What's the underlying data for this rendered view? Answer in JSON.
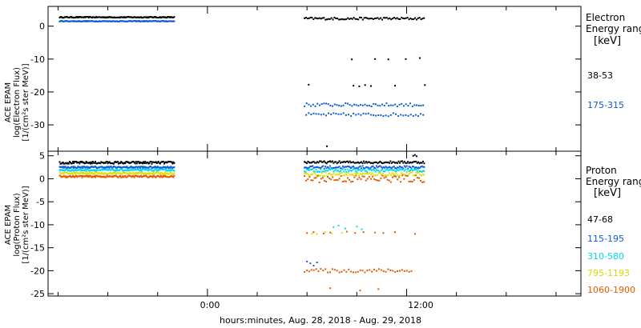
{
  "chart_data": [
    {
      "type": "scatter",
      "ylabel_lines": [
        "ACE EPAM",
        "log(Electron Flux)",
        "[1/(cm²s ster MeV)]"
      ],
      "ylim": [
        -38,
        6
      ],
      "yticks": [
        0,
        -10,
        -20,
        -30
      ],
      "legend_title": [
        "Electron",
        "Energy range",
        "[keV]"
      ],
      "series": [
        {
          "name": "38-53",
          "color": "#000000",
          "segments": [
            {
              "x0": -8.9,
              "x1": -2.0,
              "y": 2.7,
              "jitter": 0.15,
              "step": 0.05
            },
            {
              "x0": 5.85,
              "x1": 13.1,
              "y": 2.3,
              "jitter": 0.35,
              "step": 0.09
            }
          ],
          "points": [
            [
              6.1,
              -17.8
            ],
            [
              8.7,
              -10.1
            ],
            [
              10.1,
              -10.0
            ],
            [
              10.9,
              -10.1
            ],
            [
              11.95,
              -10.0
            ],
            [
              12.8,
              -9.7
            ],
            [
              8.8,
              -18.1
            ],
            [
              9.15,
              -18.3
            ],
            [
              9.5,
              -17.9
            ],
            [
              9.85,
              -18.2
            ],
            [
              11.3,
              -18.1
            ],
            [
              13.1,
              -17.9
            ],
            [
              7.2,
              -36.5
            ]
          ]
        },
        {
          "name": "175-315",
          "color": "#0b5bd8",
          "segments": [
            {
              "x0": -8.9,
              "x1": -2.0,
              "y": 1.5,
              "jitter": 0.12,
              "step": 0.05
            },
            {
              "x0": 5.85,
              "x1": 13.1,
              "y": -23.9,
              "jitter": 0.5,
              "step": 0.13
            },
            {
              "x0": 5.95,
              "x1": 13.1,
              "y": -26.9,
              "jitter": 0.5,
              "step": 0.15
            }
          ],
          "points": []
        }
      ]
    },
    {
      "type": "scatter",
      "ylabel_lines": [
        "ACE EPAM",
        "log(Proton Flux)",
        "[1/(cm²s ster MeV)]"
      ],
      "ylim": [
        -25.5,
        6
      ],
      "yticks": [
        5,
        0,
        -5,
        -10,
        -15,
        -20,
        -25
      ],
      "legend_title": [
        "Proton",
        "Energy range",
        "[keV]"
      ],
      "series": [
        {
          "name": "47-68",
          "color": "#000000",
          "segments": [
            {
              "x0": -8.9,
              "x1": -2.0,
              "y": 3.5,
              "jitter": 0.25,
              "step": 0.05
            },
            {
              "x0": 5.85,
              "x1": 13.1,
              "y": 3.6,
              "jitter": 0.25,
              "step": 0.07
            }
          ],
          "points": [
            [
              12.4,
              5.0
            ],
            [
              12.5,
              5.2
            ],
            [
              12.6,
              4.9
            ]
          ]
        },
        {
          "name": "115-195",
          "color": "#0b5bd8",
          "segments": [
            {
              "x0": -8.9,
              "x1": -2.0,
              "y": 2.5,
              "jitter": 0.2,
              "step": 0.05
            },
            {
              "x0": 5.85,
              "x1": 13.1,
              "y": 2.5,
              "jitter": 0.3,
              "step": 0.07
            }
          ],
          "points": [
            [
              6.0,
              -18.0
            ],
            [
              6.2,
              -18.4
            ],
            [
              6.4,
              -18.9
            ],
            [
              6.6,
              -18.2
            ]
          ]
        },
        {
          "name": "310-580",
          "color": "#00d8f0",
          "segments": [
            {
              "x0": -8.9,
              "x1": -2.0,
              "y": 1.9,
              "jitter": 0.2,
              "step": 0.05
            },
            {
              "x0": 5.85,
              "x1": 13.1,
              "y": 1.8,
              "jitter": 0.35,
              "step": 0.07
            }
          ],
          "points": [
            [
              7.6,
              -10.5
            ],
            [
              7.9,
              -10.2
            ],
            [
              8.3,
              -10.8
            ],
            [
              9.0,
              -10.4
            ],
            [
              9.3,
              -11.0
            ]
          ]
        },
        {
          "name": "795-1193",
          "color": "#e0e000",
          "segments": [
            {
              "x0": -8.9,
              "x1": -2.0,
              "y": 1.2,
              "jitter": 0.2,
              "step": 0.05
            },
            {
              "x0": 5.85,
              "x1": 13.1,
              "y": 1.0,
              "jitter": 0.4,
              "step": 0.08
            }
          ],
          "points": [
            [
              6.3,
              -11.9
            ],
            [
              6.6,
              -12.0
            ],
            [
              7.1,
              -11.6
            ],
            [
              7.5,
              -11.9
            ],
            [
              8.1,
              -11.8
            ]
          ]
        },
        {
          "name": "1060-1900",
          "color": "#e05a00",
          "segments": [
            {
              "x0": -8.9,
              "x1": -2.0,
              "y": 0.5,
              "jitter": 0.2,
              "step": 0.05
            },
            {
              "x0": 5.85,
              "x1": 13.1,
              "y": 0.0,
              "jitter": 0.8,
              "step": 0.1
            },
            {
              "x0": 5.85,
              "x1": 12.3,
              "y": -20.0,
              "jitter": 0.4,
              "step": 0.14
            }
          ],
          "points": [
            [
              6.0,
              -11.8
            ],
            [
              6.4,
              -11.6
            ],
            [
              7.0,
              -11.9
            ],
            [
              7.4,
              -11.7
            ],
            [
              8.4,
              -11.5
            ],
            [
              8.9,
              -11.8
            ],
            [
              9.4,
              -11.6
            ],
            [
              10.1,
              -11.7
            ],
            [
              10.6,
              -11.8
            ],
            [
              11.3,
              -11.6
            ],
            [
              7.4,
              -23.8
            ],
            [
              9.2,
              -24.3
            ],
            [
              10.3,
              -24.0
            ],
            [
              12.5,
              -12.0
            ]
          ]
        }
      ]
    }
  ],
  "x_axis": {
    "xlim": [
      -9.6,
      22.5
    ],
    "major_ticks": [
      0,
      12
    ],
    "major_labels": [
      "0:00",
      "12:00"
    ],
    "minor_ticks": [
      -9,
      -6,
      -3,
      3,
      6,
      9,
      15,
      18,
      21
    ],
    "xlabel": "hours:minutes, Aug. 28, 2018 - Aug. 29, 2018"
  }
}
